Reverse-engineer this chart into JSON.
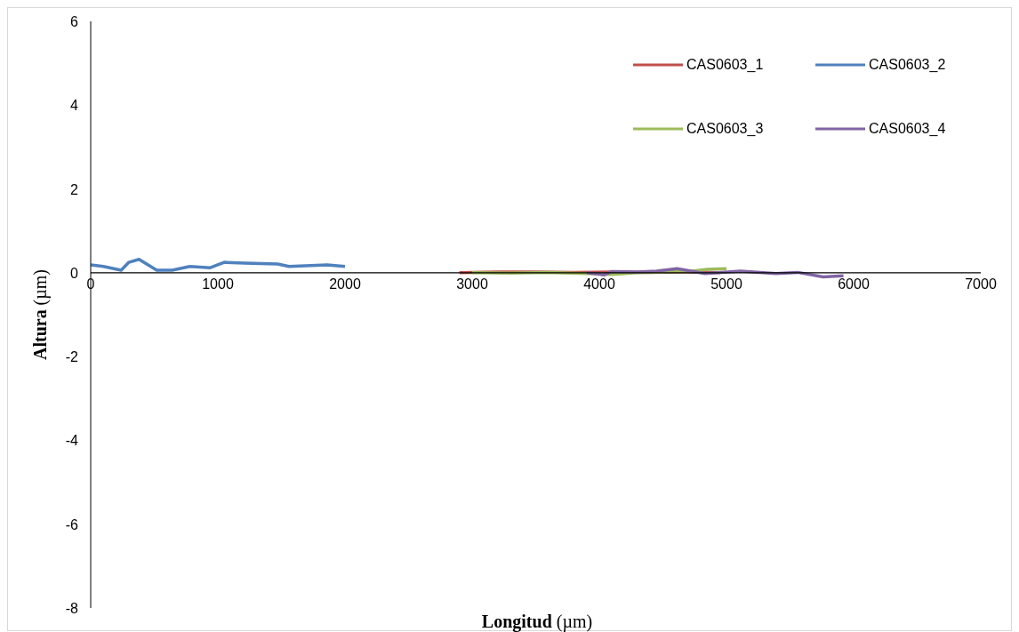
{
  "chart_data": {
    "type": "line",
    "xlabel": "Longitud (µm)",
    "ylabel": "Altura (µm)",
    "xlim": [
      0,
      7000
    ],
    "xticks": [
      0,
      1000,
      2000,
      3000,
      4000,
      5000,
      6000,
      7000
    ],
    "ylim": [
      -8,
      6
    ],
    "yticks": [
      -8,
      -6,
      -4,
      -2,
      0,
      2,
      4,
      6
    ],
    "grid": false,
    "legend": "top right",
    "marker": "none",
    "line_style": "solid",
    "series": [
      {
        "name": "CAS0603_1",
        "color": "#c0504d",
        "x": [
          2900,
          3200,
          3500,
          3800,
          4100,
          4400,
          4700,
          4950
        ],
        "values": [
          0,
          0.02,
          0.02,
          0.01,
          0.02,
          0.01,
          0.02,
          0
        ]
      },
      {
        "name": "CAS0603_2",
        "color": "#4f81bd",
        "x": [
          0,
          100,
          240,
          300,
          380,
          520,
          640,
          780,
          940,
          1050,
          1210,
          1470,
          1560,
          1860,
          2000
        ],
        "values": [
          0.19,
          0.15,
          0.06,
          0.25,
          0.32,
          0.06,
          0.06,
          0.15,
          0.12,
          0.25,
          0.23,
          0.21,
          0.15,
          0.19,
          0.15
        ]
      },
      {
        "name": "CAS0603_3",
        "color": "#9bbb59",
        "x": [
          3000,
          3300,
          3600,
          3900,
          4100,
          4300,
          4500,
          4700,
          4850,
          5000
        ],
        "values": [
          0,
          -0.01,
          0.01,
          -0.02,
          -0.04,
          0,
          0.02,
          0.03,
          0.08,
          0.1
        ]
      },
      {
        "name": "CAS0603_4",
        "color": "#8064a2",
        "x": [
          3900,
          4040,
          4100,
          4300,
          4450,
          4610,
          4830,
          5110,
          5390,
          5560,
          5760,
          5920
        ],
        "values": [
          0,
          -0.05,
          0.03,
          0.02,
          0.04,
          0.1,
          -0.02,
          0.04,
          -0.02,
          0.01,
          -0.1,
          -0.07
        ]
      }
    ]
  }
}
